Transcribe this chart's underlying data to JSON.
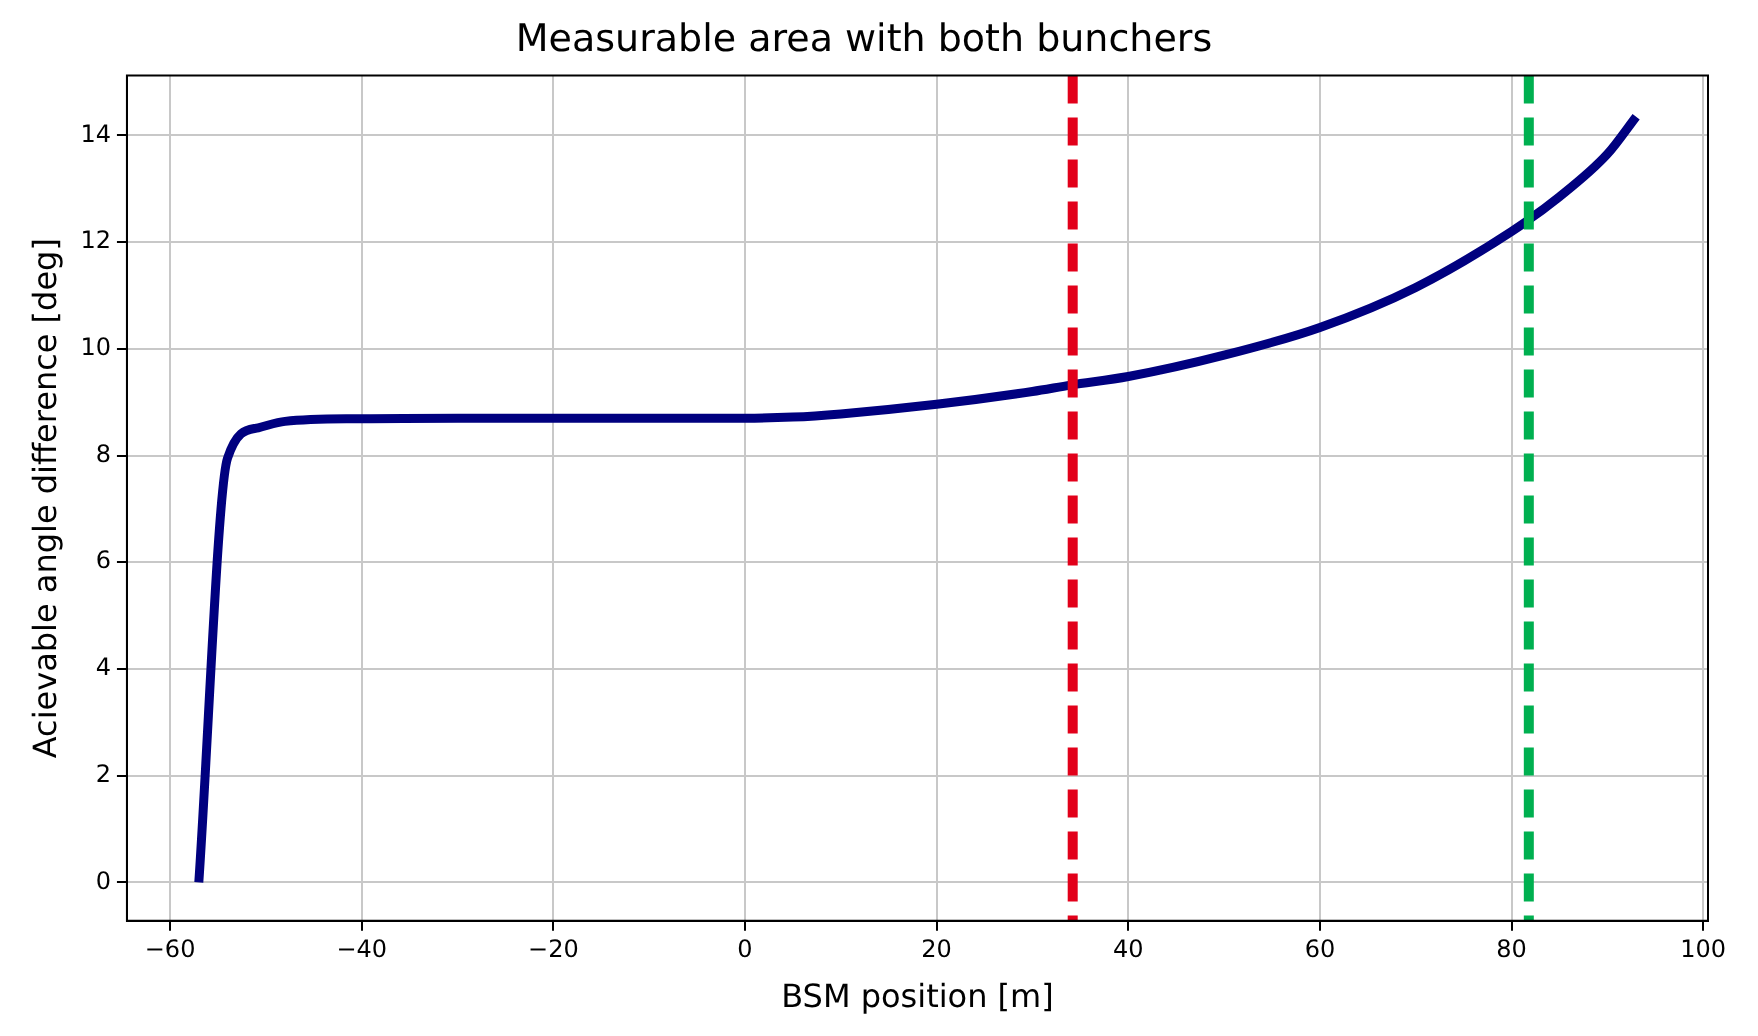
{
  "chart_data": {
    "type": "line",
    "title": "Measurable area with both bunchers",
    "xlabel": "BSM position [m]",
    "ylabel": "Acievable angle difference [deg]",
    "series": [
      {
        "color": "#00007f",
        "x": [
          -57,
          -54,
          -50.8,
          -48,
          -40,
          -30,
          -20,
          -10,
          0,
          5,
          10,
          20,
          30,
          34,
          40,
          50,
          60,
          70,
          80,
          85,
          90,
          93
        ],
        "values": [
          0,
          7.95,
          8.52,
          8.64,
          8.69,
          8.7,
          8.7,
          8.7,
          8.7,
          8.72,
          8.78,
          8.96,
          9.2,
          9.32,
          9.48,
          9.88,
          10.4,
          11.15,
          12.2,
          12.85,
          13.65,
          14.35
        ]
      }
    ],
    "xlim": [
      -64.5,
      100.5
    ],
    "ylim": [
      -0.72,
      15.12
    ],
    "xticks": [
      -60,
      -40,
      -20,
      0,
      20,
      40,
      60,
      80,
      100
    ],
    "yticks": [
      0,
      2,
      4,
      6,
      8,
      10,
      12,
      14
    ],
    "ref_lines": [
      {
        "axis": "x",
        "value": 34.2,
        "color": "#e2001a",
        "line_style": "dashed"
      },
      {
        "axis": "x",
        "value": 81.8,
        "color": "#00b050",
        "line_style": "dashed"
      }
    ],
    "grid": true,
    "legend": false,
    "marker": "none",
    "line_style": "solid"
  }
}
